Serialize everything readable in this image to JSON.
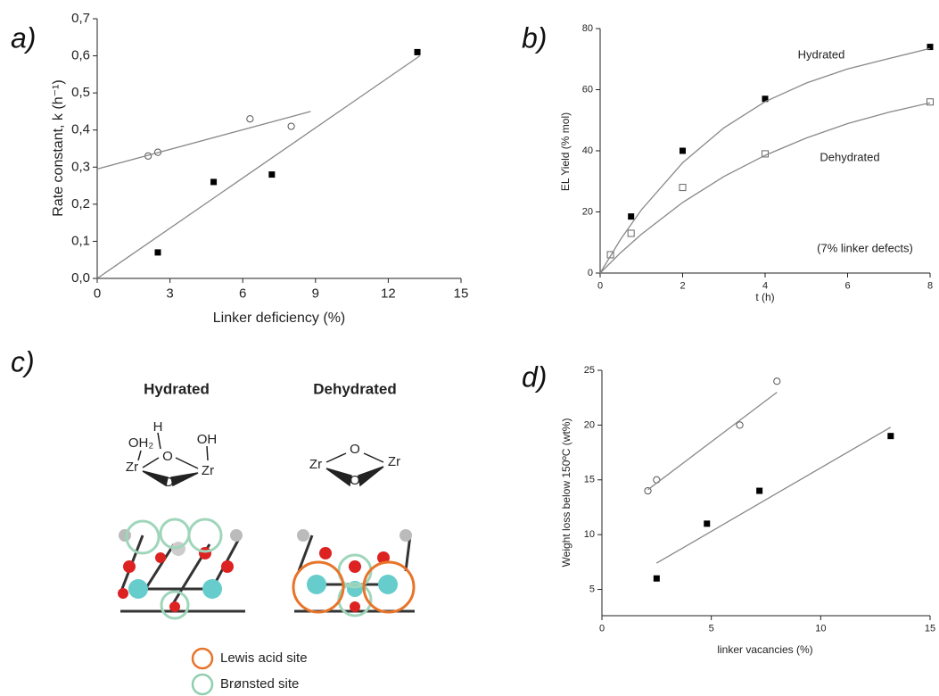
{
  "chart_data": [
    {
      "type": "scatter",
      "panel": "a)",
      "xlabel": "Linker deficiency (%)",
      "ylabel": "Rate constant, k (h⁻¹)",
      "xlim": [
        0,
        15
      ],
      "xticks": [
        0,
        3,
        6,
        9,
        12,
        15
      ],
      "ylim": [
        0,
        0.7
      ],
      "yticks": [
        {
          "value": 0,
          "label": "0,0"
        },
        {
          "value": 0.1,
          "label": "0,1"
        },
        {
          "value": 0.2,
          "label": "0,2"
        },
        {
          "value": 0.3,
          "label": "0,3"
        },
        {
          "value": 0.4,
          "label": "0,4"
        },
        {
          "value": 0.5,
          "label": "0,5"
        },
        {
          "value": 0.6,
          "label": "0,6"
        },
        {
          "value": 0.7,
          "label": "0,7"
        }
      ],
      "series": [
        {
          "style": "filled-square",
          "color": "#000000",
          "x": [
            2.5,
            4.8,
            7.2,
            13.2
          ],
          "values": [
            0.07,
            0.26,
            0.28,
            0.61
          ]
        },
        {
          "style": "open-circle",
          "color": "#555555",
          "x": [
            2.1,
            2.5,
            6.3,
            8.0
          ],
          "values": [
            0.33,
            0.34,
            0.43,
            0.41
          ]
        },
        {
          "style": "line",
          "color": "#888888",
          "x": [
            0,
            13.3
          ],
          "values": [
            0,
            0.6
          ]
        },
        {
          "style": "line",
          "color": "#888888",
          "x": [
            0,
            8.8
          ],
          "values": [
            0.295,
            0.45
          ]
        }
      ]
    },
    {
      "type": "scatter",
      "panel": "b)",
      "xlabel": "t (h)",
      "ylabel": "EL Yield (% mol)",
      "annotations": [
        "Hydrated",
        "Dehydrated",
        "(7% linker defects)"
      ],
      "xlim": [
        0,
        8
      ],
      "xticks": [
        0,
        2,
        4,
        6,
        8
      ],
      "ylim": [
        0,
        80
      ],
      "yticks": [
        0,
        20,
        40,
        60,
        80
      ],
      "series": [
        {
          "style": "filled-square",
          "color": "#000000",
          "x": [
            0.25,
            0.75,
            2,
            4,
            8
          ],
          "values": [
            6,
            18.5,
            40,
            57,
            74
          ]
        },
        {
          "style": "open-square",
          "color": "#666666",
          "x": [
            0.25,
            0.75,
            2,
            4,
            8
          ],
          "values": [
            6,
            13,
            28,
            39,
            56
          ]
        },
        {
          "style": "line",
          "color": "#888888",
          "x": [
            0,
            0.5,
            1,
            2,
            3,
            4,
            5,
            6,
            7,
            8
          ],
          "values": [
            0,
            11.1,
            20.7,
            36.1,
            47.5,
            56.1,
            62.2,
            66.8,
            70.2,
            73.5
          ]
        },
        {
          "style": "line",
          "color": "#888888",
          "x": [
            0,
            0.5,
            1,
            2,
            3,
            4,
            5,
            6,
            7,
            8
          ],
          "values": [
            0,
            6.7,
            12.7,
            23.1,
            31.6,
            38.5,
            44.2,
            48.9,
            52.6,
            55.7
          ]
        }
      ]
    },
    {
      "type": "scatter",
      "panel": "d)",
      "xlabel": "linker vacancies (%)",
      "ylabel": "Weight loss below 150ºC (wt%)",
      "xlim": [
        0,
        15
      ],
      "xticks": [
        0,
        5,
        10,
        15
      ],
      "ylim": [
        2.6,
        25
      ],
      "yticks": [
        5,
        10,
        15,
        20,
        25
      ],
      "series": [
        {
          "style": "filled-square",
          "color": "#000000",
          "x": [
            2.5,
            4.8,
            7.2,
            13.2
          ],
          "values": [
            6,
            11,
            14,
            19
          ]
        },
        {
          "style": "open-circle",
          "color": "#555555",
          "x": [
            2.1,
            2.5,
            6.3,
            8.0
          ],
          "values": [
            14,
            15,
            20,
            24
          ]
        },
        {
          "style": "line",
          "color": "#888888",
          "x": [
            2.5,
            13.2
          ],
          "values": [
            7.4,
            19.8
          ]
        },
        {
          "style": "line",
          "color": "#888888",
          "x": [
            2.1,
            8.0
          ],
          "values": [
            14.1,
            23
          ]
        }
      ]
    }
  ],
  "diagram": {
    "panel": "c)",
    "hydrated": {
      "title": "Hydrated",
      "atoms": [
        "OH₂",
        "H",
        "O",
        "OH",
        "Zr",
        "Zr",
        "O"
      ]
    },
    "dehydrated": {
      "title": "Dehydrated",
      "atoms": [
        "O",
        "Zr",
        "Zr",
        "O"
      ]
    },
    "legend": [
      "Lewis acid site",
      "Brønsted site"
    ]
  }
}
